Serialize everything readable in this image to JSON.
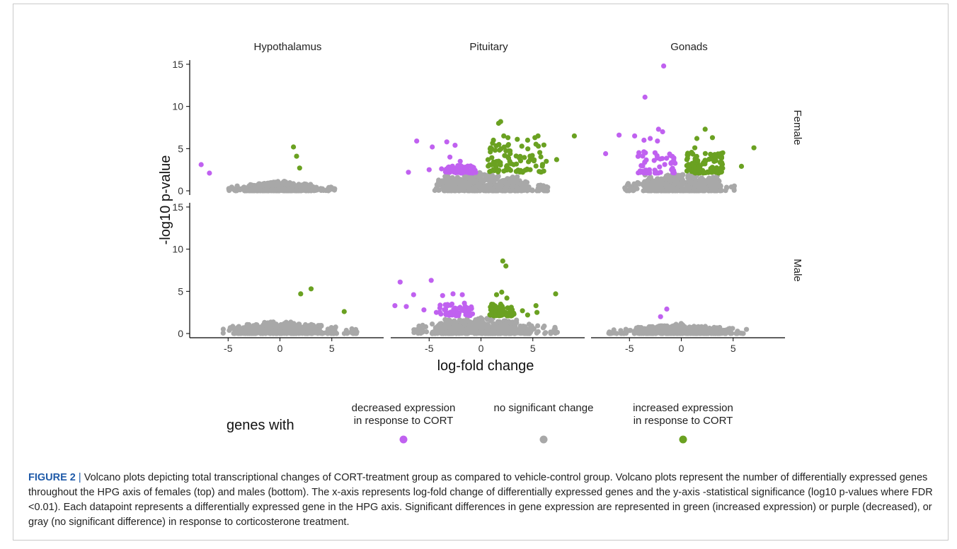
{
  "chart_data": {
    "type": "scatter",
    "facets": {
      "columns": [
        "Hypothalamus",
        "Pituitary",
        "Gonads"
      ],
      "rows": [
        "Female",
        "Male"
      ]
    },
    "xlabel": "log-fold change",
    "ylabel": "-log10 p-value",
    "x_ticks": [
      "-5",
      "0",
      "5"
    ],
    "y_ticks": [
      "0",
      "5",
      "10",
      "15"
    ],
    "xlim": [
      -8.5,
      10
    ],
    "ylim": [
      -0.5,
      15.5
    ],
    "legend": {
      "title": "genes with",
      "placement": "bottom",
      "entries": [
        {
          "label_line1": "decreased expression",
          "label_line2": "in response to CORT",
          "color": "#c061f0"
        },
        {
          "label_line1": "no significant change",
          "label_line2": "",
          "color": "#a8a8a8"
        },
        {
          "label_line1": "increased expression",
          "label_line2": "in response to CORT",
          "color": "#6aa121"
        }
      ]
    },
    "series_colors": {
      "decreased": "#c061f0",
      "none": "#a8a8a8",
      "increased": "#6aa121"
    },
    "panels": [
      {
        "col": 0,
        "row": 0,
        "decreased": [
          [
            -7.6,
            3.1
          ],
          [
            -6.8,
            2.1
          ]
        ],
        "increased": [
          [
            1.3,
            5.2
          ],
          [
            1.6,
            4.1
          ],
          [
            1.9,
            2.7
          ]
        ],
        "none_spread": [
          -5,
          5.3
        ],
        "none_height": 1.2
      },
      {
        "col": 1,
        "row": 0,
        "decreased": [
          [
            -6.2,
            5.9
          ],
          [
            -4.7,
            5.2
          ],
          [
            -3.3,
            5.8
          ],
          [
            -2.5,
            5.4
          ],
          [
            -7.0,
            2.2
          ],
          [
            -5.0,
            2.5
          ],
          [
            -3.0,
            4.0
          ],
          [
            -2.0,
            3.5
          ],
          [
            -1.5,
            2.8
          ],
          [
            -1.0,
            2.4
          ],
          [
            -0.8,
            2.1
          ],
          [
            -3.8,
            2.6
          ]
        ],
        "increased": [
          [
            1.7,
            8.0
          ],
          [
            1.9,
            8.2
          ],
          [
            2.2,
            6.5
          ],
          [
            1.2,
            6.0
          ],
          [
            2.6,
            6.3
          ],
          [
            3.5,
            6.1
          ],
          [
            4.5,
            6.0
          ],
          [
            5.2,
            6.3
          ],
          [
            5.5,
            6.5
          ],
          [
            7.3,
            3.7
          ],
          [
            9.0,
            6.5
          ],
          [
            6.3,
            3.5
          ]
        ],
        "increased_cloud": [
          0.6,
          6.2,
          2.2,
          5.8
        ],
        "decreased_cloud": [
          -3.5,
          -0.5,
          2.1,
          3.0
        ],
        "none_spread": [
          -4.5,
          6.5
        ],
        "none_height": 2.2
      },
      {
        "col": 2,
        "row": 0,
        "decreased": [
          [
            -1.7,
            14.8
          ],
          [
            -3.5,
            11.1
          ],
          [
            -2.2,
            7.3
          ],
          [
            -1.8,
            7.0
          ],
          [
            -6.0,
            6.6
          ],
          [
            -4.5,
            6.5
          ],
          [
            -7.3,
            4.4
          ],
          [
            -3.0,
            6.2
          ],
          [
            -2.3,
            5.9
          ],
          [
            -3.6,
            6.0
          ]
        ],
        "increased": [
          [
            2.3,
            7.3
          ],
          [
            1.5,
            6.2
          ],
          [
            3.0,
            6.3
          ],
          [
            4.0,
            4.5
          ],
          [
            7.0,
            5.1
          ],
          [
            5.8,
            2.9
          ],
          [
            1.3,
            5.1
          ]
        ],
        "increased_cloud": [
          0.5,
          4.0,
          2.1,
          4.6
        ],
        "decreased_cloud": [
          -4.2,
          -0.5,
          2.1,
          4.8
        ],
        "none_spread": [
          -5.5,
          5.5
        ],
        "none_height": 2.2
      },
      {
        "col": 0,
        "row": 1,
        "decreased": [],
        "increased": [
          [
            2.0,
            4.7
          ],
          [
            3.0,
            5.3
          ],
          [
            6.2,
            2.6
          ]
        ],
        "none_spread": [
          -5.5,
          7.5
        ],
        "none_height": 1.5
      },
      {
        "col": 1,
        "row": 1,
        "decreased": [
          [
            -7.8,
            6.1
          ],
          [
            -4.8,
            6.3
          ],
          [
            -7.2,
            3.2
          ],
          [
            -8.3,
            3.3
          ],
          [
            -6.5,
            4.6
          ],
          [
            -5.5,
            2.8
          ],
          [
            -3.7,
            4.5
          ],
          [
            -2.7,
            4.7
          ],
          [
            -1.8,
            4.6
          ],
          [
            -1.6,
            3.6
          ],
          [
            -4.3,
            2.5
          ],
          [
            -2.8,
            3.5
          ]
        ],
        "increased": [
          [
            2.1,
            8.6
          ],
          [
            2.4,
            8.0
          ],
          [
            1.5,
            4.6
          ],
          [
            2.0,
            4.9
          ],
          [
            2.5,
            4.2
          ],
          [
            7.2,
            4.7
          ],
          [
            5.3,
            3.3
          ],
          [
            4.0,
            2.7
          ],
          [
            1.0,
            2.3
          ],
          [
            5.4,
            2.5
          ],
          [
            4.5,
            2.2
          ]
        ],
        "increased_cloud": [
          0.8,
          3.2,
          2.1,
          3.5
        ],
        "decreased_cloud": [
          -4.0,
          -0.8,
          2.1,
          3.5
        ],
        "none_spread": [
          -6.5,
          7.5
        ],
        "none_height": 2.0
      },
      {
        "col": 2,
        "row": 1,
        "decreased": [
          [
            -1.4,
            2.9
          ],
          [
            -2.0,
            2.0
          ]
        ],
        "increased": [],
        "none_spread": [
          -7,
          6.3
        ],
        "none_height": 1.2
      }
    ]
  },
  "caption": {
    "figure_label": "FIGURE 2",
    "separator": "|",
    "text": "Volcano plots depicting total transcriptional changes of CORT-treatment group as compared to vehicle-control group. Volcano plots represent the number of differentially expressed genes throughout the HPG axis of females (top) and males (bottom). The x-axis represents log-fold change of differentially expressed genes and the y-axis -statistical significance (log10 p-values where FDR <0.01). Each datapoint represents a differentially expressed gene in the HPG axis. Significant differences in gene expression are represented in green (increased expression) or purple (decreased), or gray (no significant difference) in response to corticosterone treatment."
  }
}
